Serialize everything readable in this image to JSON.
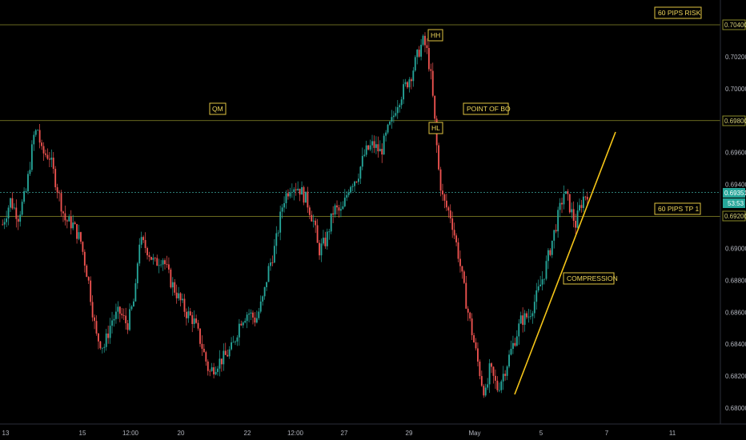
{
  "chart_data": {
    "type": "candlestick",
    "ylim": [
      0.68,
      0.705
    ],
    "y_ticks": [
      "0.70400",
      "0.70200",
      "0.70000",
      "0.69800",
      "0.69600",
      "0.69400",
      "0.69200",
      "0.69000",
      "0.68800",
      "0.68600",
      "0.68400",
      "0.68200",
      "0.68000"
    ],
    "x_ticks": [
      "13",
      "15",
      "12:00",
      "20",
      "22",
      "12:00",
      "27",
      "29",
      "May",
      "5",
      "7",
      "11"
    ],
    "last_price": "0.69351",
    "countdown": "53:53",
    "levels": [
      {
        "name": "risk",
        "price": 0.704,
        "tag": "0.70400"
      },
      {
        "name": "qm",
        "price": 0.698,
        "tag": "0.69800"
      },
      {
        "name": "current",
        "price": 0.69351,
        "tag": "0.69351"
      },
      {
        "name": "tp",
        "price": 0.692,
        "tag": "0.69200"
      }
    ],
    "annotations": [
      "60 PIPS RISK",
      "HH",
      "QM",
      "POINT OF BO",
      "HL",
      "60 PIPS TP 1",
      "COMPRESSION"
    ],
    "path": [
      [
        0,
        0.6915
      ],
      [
        2,
        0.693
      ],
      [
        4,
        0.692
      ],
      [
        6,
        0.6935
      ],
      [
        8,
        0.697
      ],
      [
        9,
        0.6975
      ],
      [
        10,
        0.696
      ],
      [
        12,
        0.6958
      ],
      [
        14,
        0.6938
      ],
      [
        16,
        0.6918
      ],
      [
        18,
        0.6915
      ],
      [
        20,
        0.6905
      ],
      [
        22,
        0.688
      ],
      [
        24,
        0.6845
      ],
      [
        26,
        0.6838
      ],
      [
        28,
        0.6855
      ],
      [
        30,
        0.686
      ],
      [
        32,
        0.6852
      ],
      [
        34,
        0.687
      ],
      [
        35,
        0.6905
      ],
      [
        37,
        0.69
      ],
      [
        39,
        0.689
      ],
      [
        41,
        0.6895
      ],
      [
        43,
        0.688
      ],
      [
        45,
        0.687
      ],
      [
        47,
        0.686
      ],
      [
        49,
        0.6855
      ],
      [
        51,
        0.684
      ],
      [
        53,
        0.6822
      ],
      [
        55,
        0.6828
      ],
      [
        57,
        0.6832
      ],
      [
        59,
        0.6838
      ],
      [
        61,
        0.6855
      ],
      [
        63,
        0.686
      ],
      [
        65,
        0.6855
      ],
      [
        67,
        0.687
      ],
      [
        68,
        0.6885
      ],
      [
        70,
        0.6902
      ],
      [
        72,
        0.693
      ],
      [
        74,
        0.694
      ],
      [
        76,
        0.6938
      ],
      [
        78,
        0.693
      ],
      [
        80,
        0.6915
      ],
      [
        81,
        0.6898
      ],
      [
        83,
        0.6905
      ],
      [
        85,
        0.6925
      ],
      [
        87,
        0.6922
      ],
      [
        89,
        0.694
      ],
      [
        91,
        0.6945
      ],
      [
        93,
        0.696
      ],
      [
        95,
        0.6965
      ],
      [
        97,
        0.696
      ],
      [
        99,
        0.6975
      ],
      [
        100,
        0.698
      ],
      [
        101,
        0.699
      ],
      [
        103,
        0.7
      ],
      [
        105,
        0.701
      ],
      [
        107,
        0.7025
      ],
      [
        108,
        0.703
      ],
      [
        109,
        0.7022
      ],
      [
        110,
        0.7005
      ],
      [
        111,
        0.6975
      ],
      [
        112,
        0.6945
      ],
      [
        113,
        0.693
      ],
      [
        115,
        0.692
      ],
      [
        117,
        0.6895
      ],
      [
        119,
        0.6865
      ],
      [
        121,
        0.684
      ],
      [
        123,
        0.6815
      ],
      [
        124,
        0.6808
      ],
      [
        125,
        0.6825
      ],
      [
        126,
        0.6818
      ],
      [
        127,
        0.6812
      ],
      [
        129,
        0.6825
      ],
      [
        131,
        0.684
      ],
      [
        133,
        0.6855
      ],
      [
        135,
        0.6858
      ],
      [
        137,
        0.687
      ],
      [
        139,
        0.6885
      ],
      [
        141,
        0.6905
      ],
      [
        143,
        0.6925
      ],
      [
        144,
        0.6935
      ],
      [
        145,
        0.693
      ],
      [
        146,
        0.6922
      ],
      [
        147,
        0.6915
      ],
      [
        148,
        0.6925
      ],
      [
        149,
        0.6932
      ],
      [
        150,
        0.6935
      ]
    ]
  },
  "labels": {
    "risk": "60 PIPS RISK",
    "hh": "HH",
    "qm": "QM",
    "bo": "POINT OF BO",
    "hl": "HL",
    "tp": "60 PIPS TP 1",
    "compression": "COMPRESSION"
  },
  "colors": {
    "bull": "#26a69a",
    "bear": "#ef5350",
    "level": "#8c8c2a",
    "current_line": "#3aa39a",
    "trend": "#f5c518",
    "annotation": "#f0d75a"
  }
}
